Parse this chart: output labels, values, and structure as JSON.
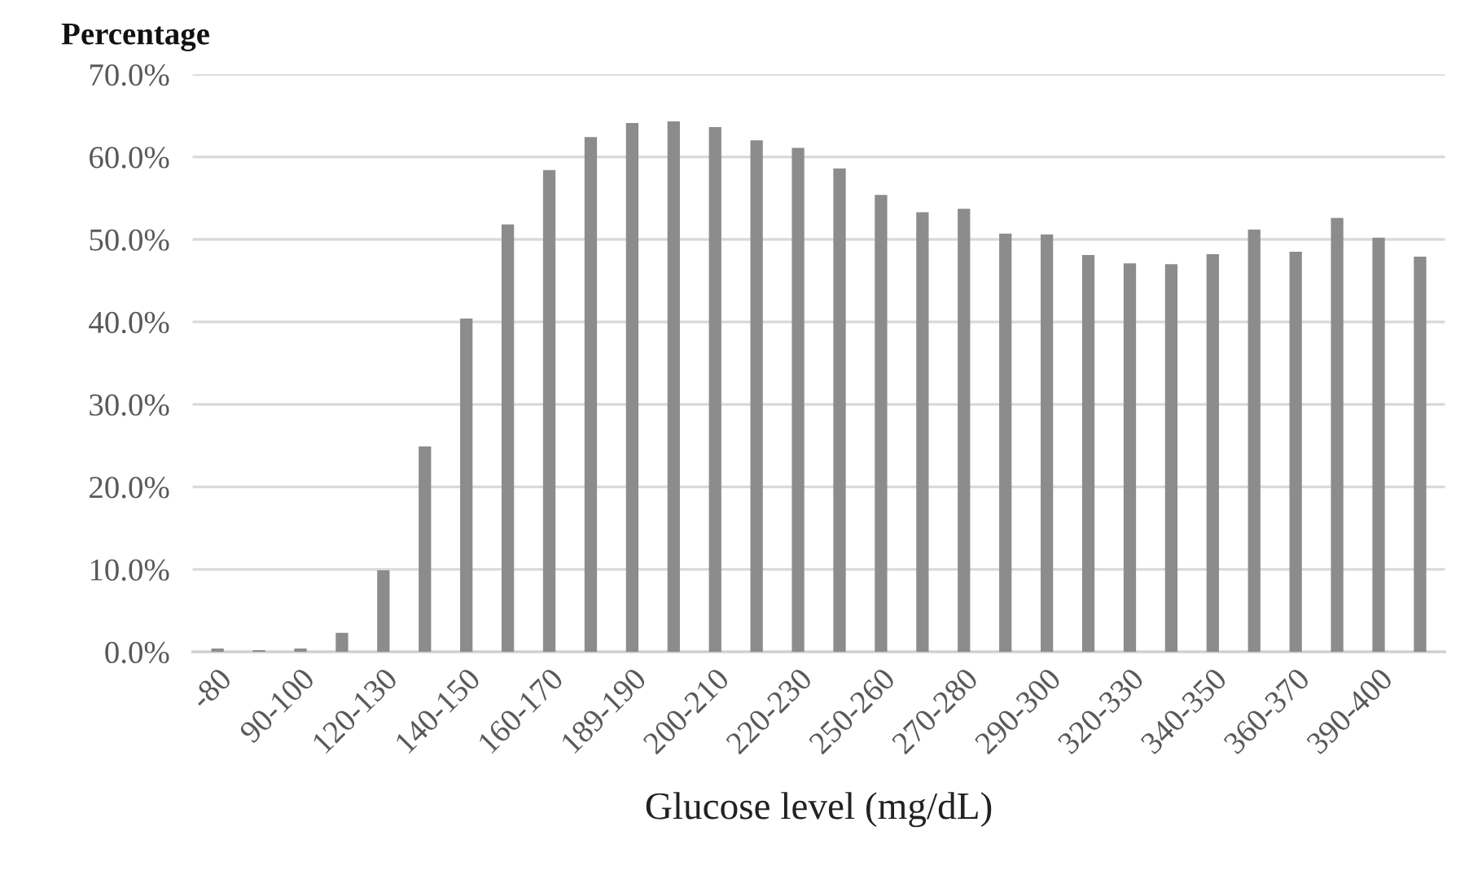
{
  "chart_data": {
    "type": "bar",
    "ylabel": "Percentage",
    "xlabel": "Glucose level (mg/dL)",
    "categories": [
      "-80",
      null,
      "90-100",
      null,
      "120-130",
      null,
      "140-150",
      null,
      "160-170",
      null,
      "189-190",
      null,
      "200-210",
      null,
      "220-230",
      null,
      "250-260",
      null,
      "270-280",
      null,
      "290-300",
      null,
      "320-330",
      null,
      "340-350",
      null,
      "360-370",
      null,
      "390-400",
      null
    ],
    "values": [
      0.4,
      0.2,
      0.4,
      2.3,
      9.9,
      24.9,
      40.4,
      51.8,
      58.4,
      62.4,
      64.1,
      64.3,
      63.6,
      62.0,
      61.1,
      58.6,
      55.4,
      53.3,
      53.7,
      50.7,
      50.6,
      48.1,
      47.1,
      47.0,
      48.2,
      51.2,
      48.5,
      52.6,
      50.2,
      47.9
    ],
    "color": "#8c8c8c",
    "ylim": [
      0,
      70
    ],
    "yticks": [
      {
        "value": 0,
        "label": "0.0%"
      },
      {
        "value": 10,
        "label": "10.0%"
      },
      {
        "value": 20,
        "label": "20.0%"
      },
      {
        "value": 30,
        "label": "30.0%"
      },
      {
        "value": 40,
        "label": "40.0%"
      },
      {
        "value": 50,
        "label": "50.0%"
      },
      {
        "value": 60,
        "label": "60.0%"
      },
      {
        "value": 70,
        "label": "70.0%"
      }
    ],
    "grid": "y"
  }
}
